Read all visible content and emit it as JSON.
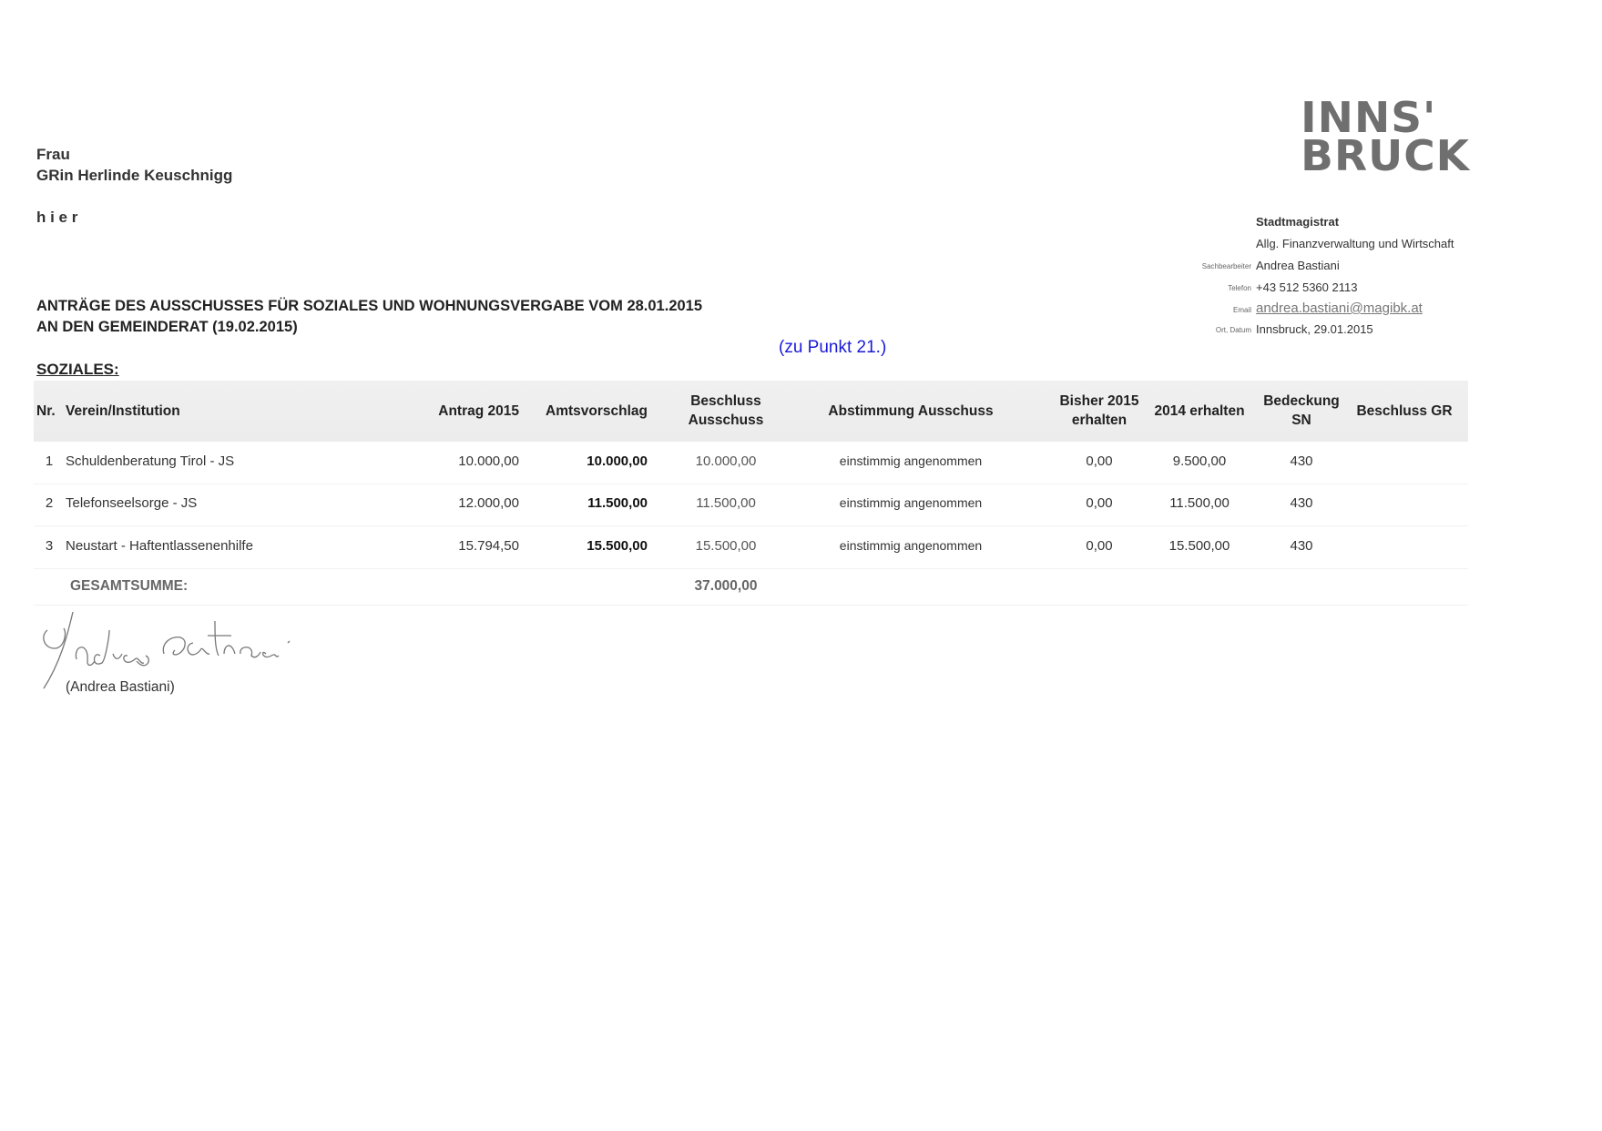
{
  "recipient": {
    "salutation": "Frau",
    "name": "GRin Herlinde Keuschnigg",
    "location": "h i e r"
  },
  "title": {
    "line1": "ANTRÄGE DES AUSSCHUSSES FÜR SOZIALES UND WOHNUNGSVERGABE VOM 28.01.2015",
    "line2": "AN DEN GEMEINDERAT (19.02.2015)"
  },
  "note": "(zu Punkt 21.)",
  "section": "SOZIALES:",
  "logo": {
    "line1": "INNS'",
    "line2": "BRUCK"
  },
  "sender": {
    "office": "Stadtmagistrat",
    "department": "Allg. Finanzverwaltung und Wirtschaft",
    "clerk_label": "Sachbearbeiter",
    "clerk": "Andrea Bastiani",
    "phone_label": "Telefon",
    "phone": "+43 512 5360 2113",
    "email_label": "Email",
    "email": "andrea.bastiani@magibk.at",
    "place_date_label": "Ort, Datum",
    "place_date": "Innsbruck, 29.01.2015"
  },
  "table": {
    "headers": {
      "nr": "Nr.",
      "verein": "Verein/Institution",
      "antrag": "Antrag 2015",
      "amts": "Amtsvorschlag",
      "beschluss_1": "Beschluss",
      "beschluss_2": "Ausschuss",
      "abstimmung": "Abstimmung Ausschuss",
      "bisher_1": "Bisher 2015",
      "bisher_2": "erhalten",
      "erhalten2014": "2014 erhalten",
      "bedeckung_1": "Bedeckung",
      "bedeckung_2": "SN",
      "beschluss_gr": "Beschluss GR"
    },
    "rows": [
      {
        "nr": "1",
        "verein": "Schuldenberatung Tirol - JS",
        "antrag": "10.000,00",
        "amts": "10.000,00",
        "beschluss": "10.000,00",
        "abstimmung": "einstimmig angenommen",
        "bisher": "0,00",
        "erhalten2014": "9.500,00",
        "bedeckung": "430",
        "beschluss_gr": ""
      },
      {
        "nr": "2",
        "verein": "Telefonseelsorge - JS",
        "antrag": "12.000,00",
        "amts": "11.500,00",
        "beschluss": "11.500,00",
        "abstimmung": "einstimmig angenommen",
        "bisher": "0,00",
        "erhalten2014": "11.500,00",
        "bedeckung": "430",
        "beschluss_gr": ""
      },
      {
        "nr": "3",
        "verein": "Neustart - Haftentlassenenhilfe",
        "antrag": "15.794,50",
        "amts": "15.500,00",
        "beschluss": "15.500,00",
        "abstimmung": "einstimmig angenommen",
        "bisher": "0,00",
        "erhalten2014": "15.500,00",
        "bedeckung": "430",
        "beschluss_gr": ""
      }
    ],
    "total_label": "GESAMTSUMME:",
    "total": "37.000,00"
  },
  "signature": {
    "handwritten": "Andrea Bastiani",
    "printed": "(Andrea Bastiani)"
  },
  "colors": {
    "note": "#1a1ad6",
    "logo": "#6f6f6f",
    "header_band": "#ededed"
  }
}
